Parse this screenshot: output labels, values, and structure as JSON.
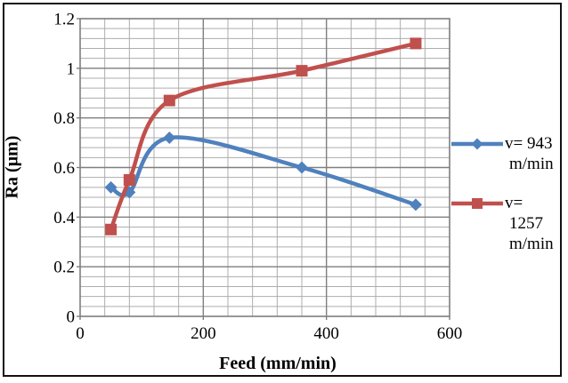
{
  "chart_data": {
    "type": "line",
    "title": "",
    "xlabel": "Feed (mm/min)",
    "ylabel": "Ra (µm)",
    "xlim": [
      0,
      600
    ],
    "ylim": [
      0,
      1.2
    ],
    "x_minor_unit": 40,
    "y_minor_unit": 0.04,
    "grid": "major and minor, gray",
    "legend_position": "right",
    "smoothed_lines": true,
    "x_ticks": {
      "values": [
        0,
        200,
        400,
        600
      ],
      "labels": [
        "0",
        "200",
        "400",
        "600"
      ]
    },
    "y_ticks": {
      "values": [
        0,
        0.2,
        0.4,
        0.6,
        0.8,
        1.0,
        1.2
      ],
      "labels": [
        "0",
        "0.2",
        "0.4",
        "0.6",
        "0.8",
        "1",
        "1.2"
      ]
    },
    "x": [
      50,
      80,
      145,
      360,
      545
    ],
    "series": [
      {
        "name": "v= 943 m/min",
        "legend_lines": [
          "v= 943",
          "m/min"
        ],
        "color": "#4F81BD",
        "marker": "diamond",
        "values": [
          0.52,
          0.5,
          0.72,
          0.6,
          0.45
        ]
      },
      {
        "name": "v= 1257 m/min",
        "legend_lines": [
          "v=",
          "1257",
          "m/min"
        ],
        "color": "#C0504D",
        "marker": "square",
        "values": [
          0.35,
          0.55,
          0.87,
          0.99,
          1.1
        ]
      }
    ]
  },
  "style": {
    "minor_grid_color": "#ADADAD",
    "major_grid_color": "#7F7F7F",
    "plot_border_color": "#7F7F7F",
    "axis_text_color": "#000000",
    "frame_border_color": "#111111"
  }
}
